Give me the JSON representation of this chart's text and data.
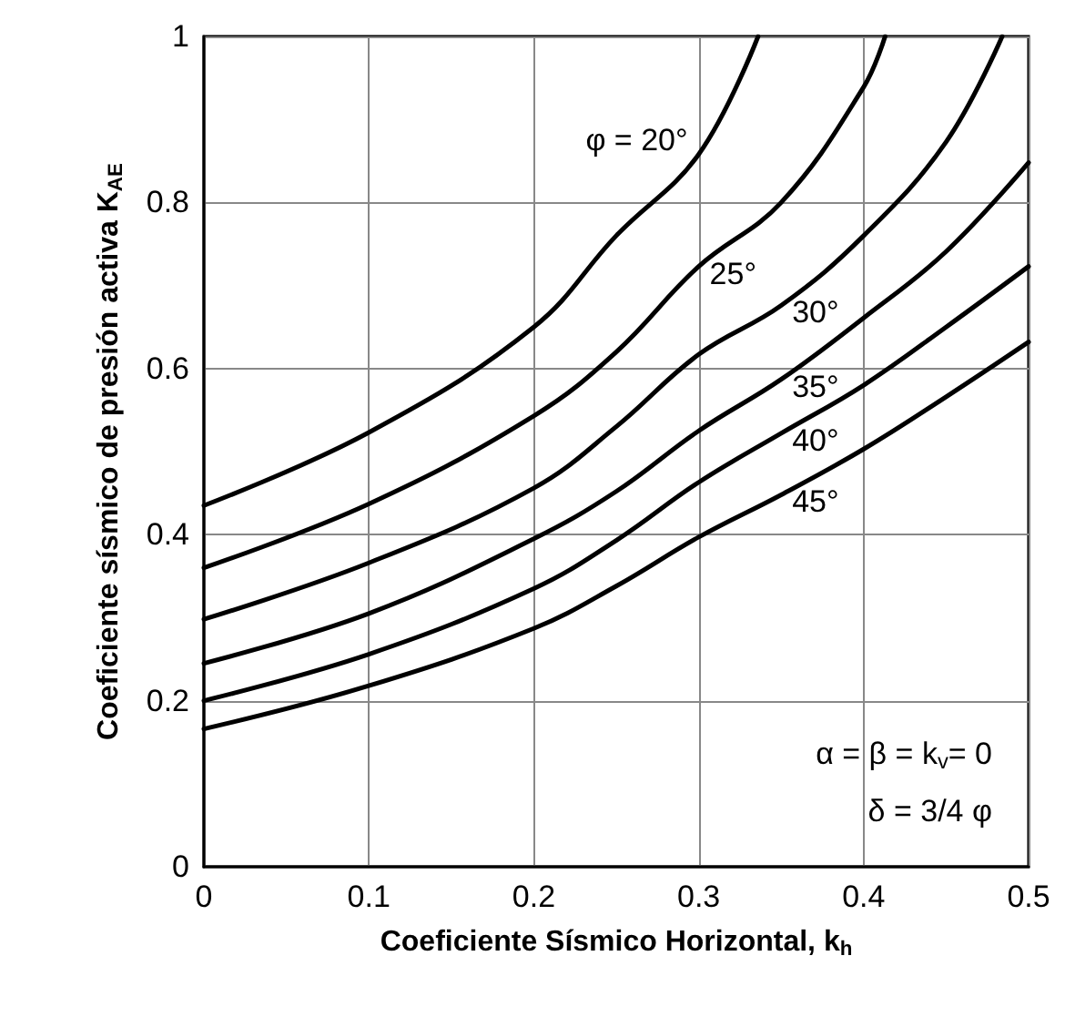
{
  "chart_data": {
    "type": "line",
    "xlabel": "Coeficiente Sísmico Horizontal, k$_{h}$",
    "ylabel": "Coeficiente sísmico de presión activa K$_{AE}$",
    "xlim": [
      0,
      0.5
    ],
    "xticks": [
      0,
      0.1,
      0.2,
      0.3,
      0.4,
      0.5
    ],
    "ylim": [
      0,
      1
    ],
    "yticks": [
      0,
      0.2,
      0.4,
      0.6,
      0.8,
      1
    ],
    "grid": true,
    "legend": false,
    "marker": "none",
    "line_style": "solid",
    "series": [
      {
        "name": "φ = 20°",
        "color": "#000000",
        "x": [
          0,
          0.1,
          0.2,
          0.25,
          0.3,
          0.336
        ],
        "values": [
          0.435,
          0.523,
          0.65,
          0.76,
          0.858,
          1.0
        ]
      },
      {
        "name": "25°",
        "color": "#000000",
        "x": [
          0,
          0.1,
          0.2,
          0.25,
          0.3,
          0.35,
          0.4,
          0.413
        ],
        "values": [
          0.36,
          0.437,
          0.543,
          0.62,
          0.723,
          0.8,
          0.939,
          1.0
        ]
      },
      {
        "name": "30°",
        "color": "#000000",
        "x": [
          0,
          0.1,
          0.2,
          0.25,
          0.3,
          0.35,
          0.4,
          0.45,
          0.484
        ],
        "values": [
          0.298,
          0.366,
          0.456,
          0.53,
          0.617,
          0.676,
          0.76,
          0.873,
          1.0
        ]
      },
      {
        "name": "35°",
        "color": "#000000",
        "x": [
          0,
          0.1,
          0.2,
          0.25,
          0.3,
          0.35,
          0.4,
          0.45,
          0.5
        ],
        "values": [
          0.245,
          0.305,
          0.395,
          0.452,
          0.525,
          0.587,
          0.661,
          0.741,
          0.848
        ]
      },
      {
        "name": "40°",
        "color": "#000000",
        "x": [
          0,
          0.1,
          0.2,
          0.25,
          0.3,
          0.35,
          0.4,
          0.45,
          0.5
        ],
        "values": [
          0.2,
          0.256,
          0.335,
          0.393,
          0.463,
          0.522,
          0.58,
          0.65,
          0.723
        ]
      },
      {
        "name": "45°",
        "color": "#000000",
        "x": [
          0,
          0.1,
          0.2,
          0.25,
          0.3,
          0.35,
          0.4,
          0.45,
          0.5
        ],
        "values": [
          0.166,
          0.218,
          0.287,
          0.338,
          0.397,
          0.448,
          0.503,
          0.566,
          0.632
        ]
      }
    ],
    "annotations": [
      "α = β = k$_{v}$= 0",
      "δ = 3/4 φ"
    ]
  }
}
